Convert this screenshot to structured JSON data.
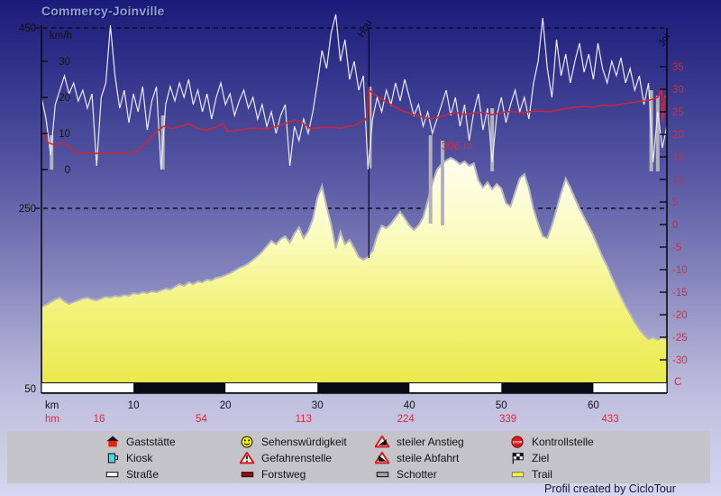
{
  "title": "Commercy-Joinville",
  "footer": "Profil created by CicloTour",
  "colors": {
    "title_text": "#8fa0d6",
    "background_top": "#1b1b7a",
    "background_bottom": "#d6d6f2",
    "speed_line": "#eaeaf4",
    "temp_line": "#c82838",
    "red_labels": "#e02830",
    "elevation_outline": "#b6b6c0",
    "elevation_fill_top": "#fffef2",
    "elevation_fill_bottom": "#e9e94e",
    "pause_bar": "#b2b2bc",
    "axis": "#111111",
    "legend_bg": "#c5c5c9"
  },
  "chart_data": {
    "type": "area",
    "title": "Commercy-Joinville",
    "x_axis": {
      "label": "km",
      "ticks": [
        10,
        20,
        30,
        40,
        50,
        60
      ],
      "range": [
        0,
        68
      ]
    },
    "hm_row": {
      "label": "hm",
      "values": [
        16,
        54,
        113,
        224,
        339,
        433
      ]
    },
    "elevation_axis": {
      "unit": "m",
      "ticks": [
        450,
        250,
        50
      ],
      "range": [
        50,
        450
      ],
      "dashed_gridlines": [
        450,
        250
      ]
    },
    "speed_axis": {
      "label": "km/h",
      "ticks": [
        30,
        20,
        10,
        0
      ]
    },
    "temp_axis": {
      "unit": "C",
      "ticks": [
        35,
        30,
        25,
        20,
        15,
        10,
        5,
        0,
        -5,
        -10,
        -15,
        -20,
        -25,
        -30
      ]
    },
    "annotations": {
      "peak_label": "306 m",
      "peak_label_km": 45.2,
      "marker_km": 35.6,
      "marker_top_label": "Hou",
      "end_top_label": "Joi"
    },
    "series": {
      "elevation_m": {
        "step_km": 0.5,
        "values": [
          141,
          143,
          146,
          149,
          151,
          147,
          144,
          146,
          148,
          150,
          151,
          149,
          148,
          150,
          152,
          151,
          153,
          152,
          154,
          153,
          156,
          155,
          157,
          156,
          158,
          157,
          159,
          161,
          160,
          163,
          166,
          164,
          168,
          166,
          169,
          168,
          171,
          170,
          173,
          174,
          176,
          178,
          181,
          184,
          186,
          189,
          193,
          197,
          202,
          208,
          214,
          210,
          216,
          219,
          212,
          222,
          229,
          217,
          225,
          238,
          262,
          275,
          252,
          232,
          206,
          224,
          210,
          215,
          206,
          196,
          193,
          196,
          203,
          220,
          231,
          228,
          233,
          240,
          246,
          239,
          231,
          226,
          231,
          240,
          258,
          278,
          293,
          299,
          303,
          306,
          303,
          299,
          302,
          297,
          300,
          281,
          273,
          279,
          271,
          277,
          272,
          256,
          252,
          268,
          283,
          288,
          272,
          249,
          233,
          219,
          217,
          231,
          249,
          267,
          283,
          273,
          261,
          250,
          240,
          230,
          220,
          208,
          196,
          186,
          174,
          163,
          152,
          142,
          133,
          124,
          116,
          110,
          105,
          107,
          104,
          107,
          105
        ]
      },
      "speed_kmh": {
        "step_km": 0.5,
        "values": [
          20,
          14,
          4,
          18,
          22,
          26,
          21,
          24,
          19,
          22,
          17,
          21,
          1,
          20,
          24,
          40,
          26,
          17,
          22,
          13,
          21,
          16,
          23,
          11,
          19,
          23,
          0,
          18,
          23,
          19,
          24,
          20,
          25,
          18,
          22,
          16,
          21,
          14,
          20,
          24,
          18,
          21,
          15,
          19,
          22,
          17,
          20,
          14,
          18,
          12,
          16,
          10,
          15,
          18,
          1,
          12,
          8,
          14,
          10,
          16,
          24,
          33,
          28,
          38,
          43,
          30,
          36,
          25,
          30,
          22,
          26,
          0,
          14,
          20,
          16,
          22,
          18,
          24,
          19,
          25,
          20,
          15,
          18,
          12,
          16,
          10,
          14,
          18,
          22,
          15,
          20,
          12,
          18,
          8,
          16,
          21,
          11,
          17,
          2,
          15,
          20,
          13,
          18,
          22,
          16,
          20,
          14,
          24,
          30,
          42,
          28,
          20,
          36,
          26,
          32,
          24,
          30,
          35,
          27,
          32,
          25,
          35,
          28,
          24,
          30,
          26,
          31,
          24,
          28,
          22,
          26,
          18,
          24,
          2,
          16,
          6,
          12
        ]
      },
      "temperature_c": {
        "points": [
          [
            0,
            21
          ],
          [
            0.7,
            18.2
          ],
          [
            1.5,
            17.6
          ],
          [
            2.3,
            18.1
          ],
          [
            3,
            17.4
          ],
          [
            3.6,
            16
          ],
          [
            4.5,
            15.8
          ],
          [
            9.5,
            15.8
          ],
          [
            10.5,
            16.4
          ],
          [
            11.5,
            18.4
          ],
          [
            12.5,
            20.6
          ],
          [
            13.3,
            21.8
          ],
          [
            14.2,
            21.3
          ],
          [
            15.3,
            21.9
          ],
          [
            16,
            22.3
          ],
          [
            17,
            21.3
          ],
          [
            18,
            21
          ],
          [
            19,
            21.6
          ],
          [
            19.7,
            22.4
          ],
          [
            20.3,
            20.6
          ],
          [
            21.5,
            21
          ],
          [
            23,
            21.4
          ],
          [
            24.5,
            21.2
          ],
          [
            26,
            22
          ],
          [
            27.5,
            23.2
          ],
          [
            28.3,
            22.6
          ],
          [
            29.3,
            21.3
          ],
          [
            31,
            21.6
          ],
          [
            32.5,
            21.4
          ],
          [
            34,
            22
          ],
          [
            35.2,
            23.2
          ],
          [
            35.5,
            24.4
          ],
          [
            35.55,
            29.8
          ],
          [
            36,
            29.2
          ],
          [
            37,
            27.8
          ],
          [
            38,
            26.6
          ],
          [
            39,
            25.4
          ],
          [
            40,
            24.7
          ],
          [
            41,
            24.1
          ],
          [
            42,
            23.5
          ],
          [
            43,
            23.7
          ],
          [
            44,
            24.3
          ],
          [
            45,
            24.9
          ],
          [
            46,
            24.4
          ],
          [
            47,
            24.7
          ],
          [
            48,
            24.9
          ],
          [
            49,
            24.4
          ],
          [
            50,
            24.8
          ],
          [
            51,
            25.1
          ],
          [
            52,
            24.8
          ],
          [
            53,
            25
          ],
          [
            54,
            25.2
          ],
          [
            55,
            25
          ],
          [
            56,
            25.3
          ],
          [
            57,
            25.7
          ],
          [
            58,
            26
          ],
          [
            59,
            26.2
          ],
          [
            60,
            26
          ],
          [
            61,
            26.5
          ],
          [
            62,
            26.3
          ],
          [
            63,
            26.7
          ],
          [
            64,
            27
          ],
          [
            65,
            27.3
          ],
          [
            66,
            27.5
          ],
          [
            67,
            28.2
          ],
          [
            67.4,
            30.3
          ],
          [
            67.55,
            22.6
          ],
          [
            67.75,
            28.6
          ],
          [
            68,
            28.1
          ]
        ]
      },
      "pause_bars": [
        {
          "km": 1.1,
          "from_kmh": 9.5,
          "to_kmh": 0
        },
        {
          "km": 13.2,
          "from_kmh": 15,
          "to_kmh": 0
        },
        {
          "km": 35.7,
          "from_kmh": 23,
          "to_kmh": 0.3
        },
        {
          "km": 42.3,
          "from_kmh": 9.5,
          "to_kmh": -15
        },
        {
          "km": 43.6,
          "from_kmh": 8,
          "to_kmh": -15.5
        },
        {
          "km": 49.0,
          "from_kmh": 17,
          "to_kmh": -0.5
        },
        {
          "km": 66.3,
          "from_kmh": 22,
          "to_kmh": -0.5
        },
        {
          "km": 67.0,
          "from_kmh": 20.5,
          "to_kmh": -0.5
        }
      ]
    }
  },
  "legend": {
    "items": [
      {
        "icon": "house",
        "label": "Gaststätte"
      },
      {
        "icon": "cup",
        "label": "Kiosk"
      },
      {
        "icon": "road",
        "label": "Straße"
      },
      {
        "icon": "smiley",
        "label": "Sehenswürdigkeit"
      },
      {
        "icon": "warning",
        "label": "Gefahrenstelle"
      },
      {
        "icon": "forest-road",
        "label": "Forstweg"
      },
      {
        "icon": "steep-up",
        "label": "steiler Anstieg"
      },
      {
        "icon": "steep-down",
        "label": "steile Abfahrt"
      },
      {
        "icon": "gravel",
        "label": "Schotter"
      },
      {
        "icon": "stop",
        "label": "Kontrollstelle"
      },
      {
        "icon": "finish-flag",
        "label": "Ziel"
      },
      {
        "icon": "trail",
        "label": "Trail"
      }
    ]
  }
}
